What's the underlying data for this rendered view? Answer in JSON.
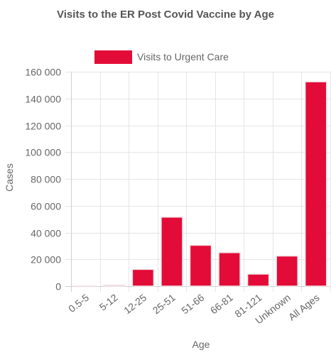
{
  "chart_data": {
    "type": "bar",
    "title": "Visits to the ER Post Covid Vaccine by Age",
    "xlabel": "Age",
    "ylabel": "Cases",
    "categories": [
      "0.5-5",
      "5-12",
      "12-25",
      "25-51",
      "51-66",
      "66-81",
      "81-121",
      "Unknown",
      "All Ages"
    ],
    "series": [
      {
        "name": "Visits to Urgent Care",
        "values": [
          200,
          800,
          12500,
          51500,
          30500,
          25000,
          9000,
          22500,
          152500
        ],
        "color": "#e30b37",
        "border_color": "#f2e3e6"
      }
    ],
    "ylim": [
      0,
      160000
    ],
    "yticks": [
      0,
      20000,
      40000,
      60000,
      80000,
      100000,
      120000,
      140000,
      160000
    ],
    "ytick_labels": [
      "0",
      "20 000",
      "40 000",
      "60 000",
      "80 000",
      "100 000",
      "120 000",
      "140 000",
      "160 000"
    ],
    "grid": true,
    "legend_position": "top"
  }
}
